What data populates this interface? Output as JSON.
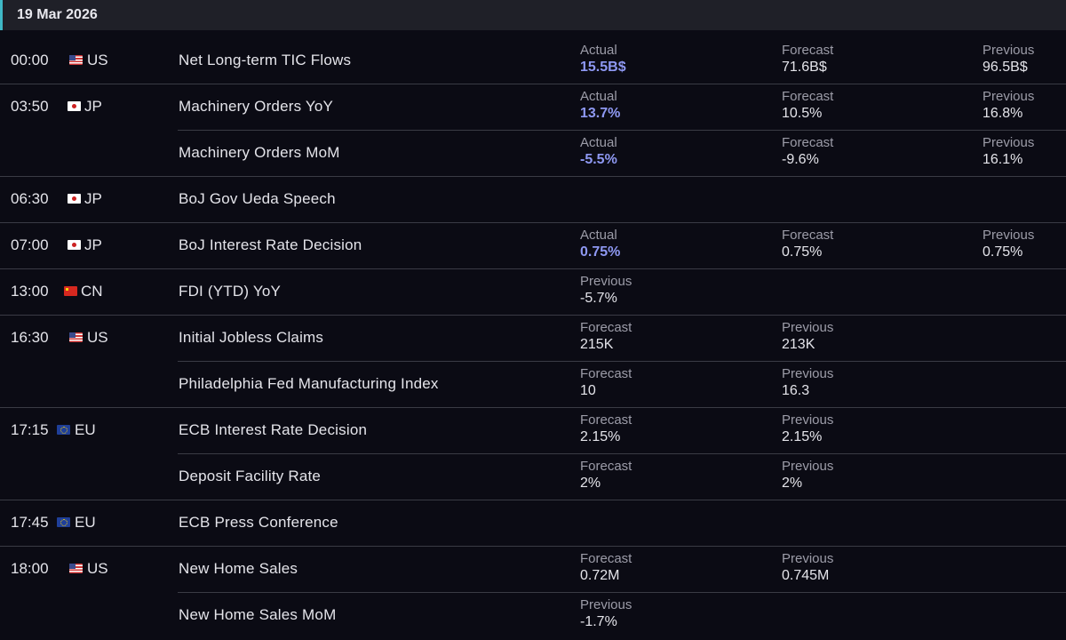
{
  "header": {
    "date": "19 Mar 2026"
  },
  "highlight_color": "#8e98f2",
  "groups": [
    {
      "time": "00:00",
      "country": "US",
      "events": [
        {
          "name": "Net Long-term TIC Flows",
          "fields": [
            {
              "label": "Actual",
              "value": "15.5B$",
              "highlight": true
            },
            {
              "label": "Forecast",
              "value": "71.6B$"
            },
            {
              "label": "Previous",
              "value": "96.5B$"
            }
          ]
        }
      ]
    },
    {
      "time": "03:50",
      "country": "JP",
      "events": [
        {
          "name": "Machinery Orders YoY",
          "fields": [
            {
              "label": "Actual",
              "value": "13.7%",
              "highlight": true
            },
            {
              "label": "Forecast",
              "value": "10.5%"
            },
            {
              "label": "Previous",
              "value": "16.8%"
            }
          ]
        },
        {
          "name": "Machinery Orders MoM",
          "fields": [
            {
              "label": "Actual",
              "value": "-5.5%",
              "highlight": true
            },
            {
              "label": "Forecast",
              "value": "-9.6%"
            },
            {
              "label": "Previous",
              "value": "16.1%"
            }
          ]
        }
      ]
    },
    {
      "time": "06:30",
      "country": "JP",
      "events": [
        {
          "name": "BoJ Gov Ueda Speech",
          "fields": []
        }
      ]
    },
    {
      "time": "07:00",
      "country": "JP",
      "events": [
        {
          "name": "BoJ Interest Rate Decision",
          "fields": [
            {
              "label": "Actual",
              "value": "0.75%",
              "highlight": true
            },
            {
              "label": "Forecast",
              "value": "0.75%"
            },
            {
              "label": "Previous",
              "value": "0.75%"
            }
          ]
        }
      ]
    },
    {
      "time": "13:00",
      "country": "CN",
      "events": [
        {
          "name": "FDI (YTD) YoY",
          "fields": [
            {
              "label": "Previous",
              "value": "-5.7%"
            }
          ]
        }
      ]
    },
    {
      "time": "16:30",
      "country": "US",
      "events": [
        {
          "name": "Initial Jobless Claims",
          "fields": [
            {
              "label": "Forecast",
              "value": "215K"
            },
            {
              "label": "Previous",
              "value": "213K"
            }
          ]
        },
        {
          "name": "Philadelphia Fed Manufacturing Index",
          "fields": [
            {
              "label": "Forecast",
              "value": "10"
            },
            {
              "label": "Previous",
              "value": "16.3"
            }
          ]
        }
      ]
    },
    {
      "time": "17:15",
      "country": "EU",
      "events": [
        {
          "name": "ECB Interest Rate Decision",
          "fields": [
            {
              "label": "Forecast",
              "value": "2.15%"
            },
            {
              "label": "Previous",
              "value": "2.15%"
            }
          ]
        },
        {
          "name": "Deposit Facility Rate",
          "fields": [
            {
              "label": "Forecast",
              "value": "2%"
            },
            {
              "label": "Previous",
              "value": "2%"
            }
          ]
        }
      ]
    },
    {
      "time": "17:45",
      "country": "EU",
      "events": [
        {
          "name": "ECB Press Conference",
          "fields": []
        }
      ]
    },
    {
      "time": "18:00",
      "country": "US",
      "events": [
        {
          "name": "New Home Sales",
          "fields": [
            {
              "label": "Forecast",
              "value": "0.72M"
            },
            {
              "label": "Previous",
              "value": "0.745M"
            }
          ]
        },
        {
          "name": "New Home Sales MoM",
          "fields": [
            {
              "label": "Previous",
              "value": "-1.7%"
            }
          ]
        }
      ]
    }
  ]
}
